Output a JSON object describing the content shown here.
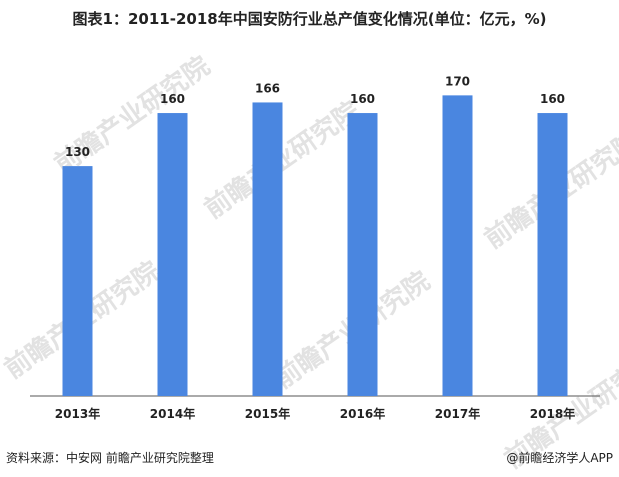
{
  "title": "图表1：2011-2018年中国安防行业总产值变化情况(单位：亿元，%)",
  "watermark": "前瞻产业研究院",
  "footer": {
    "source": "资料来源：中安网 前瞻产业研究院整理",
    "credit": "@前瞻经济学人APP"
  },
  "colors": {
    "bar": "#4a86e0",
    "axis": "#555555"
  },
  "chart_data": {
    "type": "bar",
    "categories": [
      "2013年",
      "2014年",
      "2015年",
      "2016年",
      "2017年",
      "2018年"
    ],
    "values": [
      130,
      160,
      166,
      160,
      170,
      160
    ],
    "title": "图表1：2011-2018年中国安防行业总产值变化情况(单位：亿元，%)",
    "xlabel": "",
    "ylabel": "",
    "ylim": [
      0,
      190
    ],
    "grid": false,
    "legend": "none",
    "data_labels": true
  }
}
